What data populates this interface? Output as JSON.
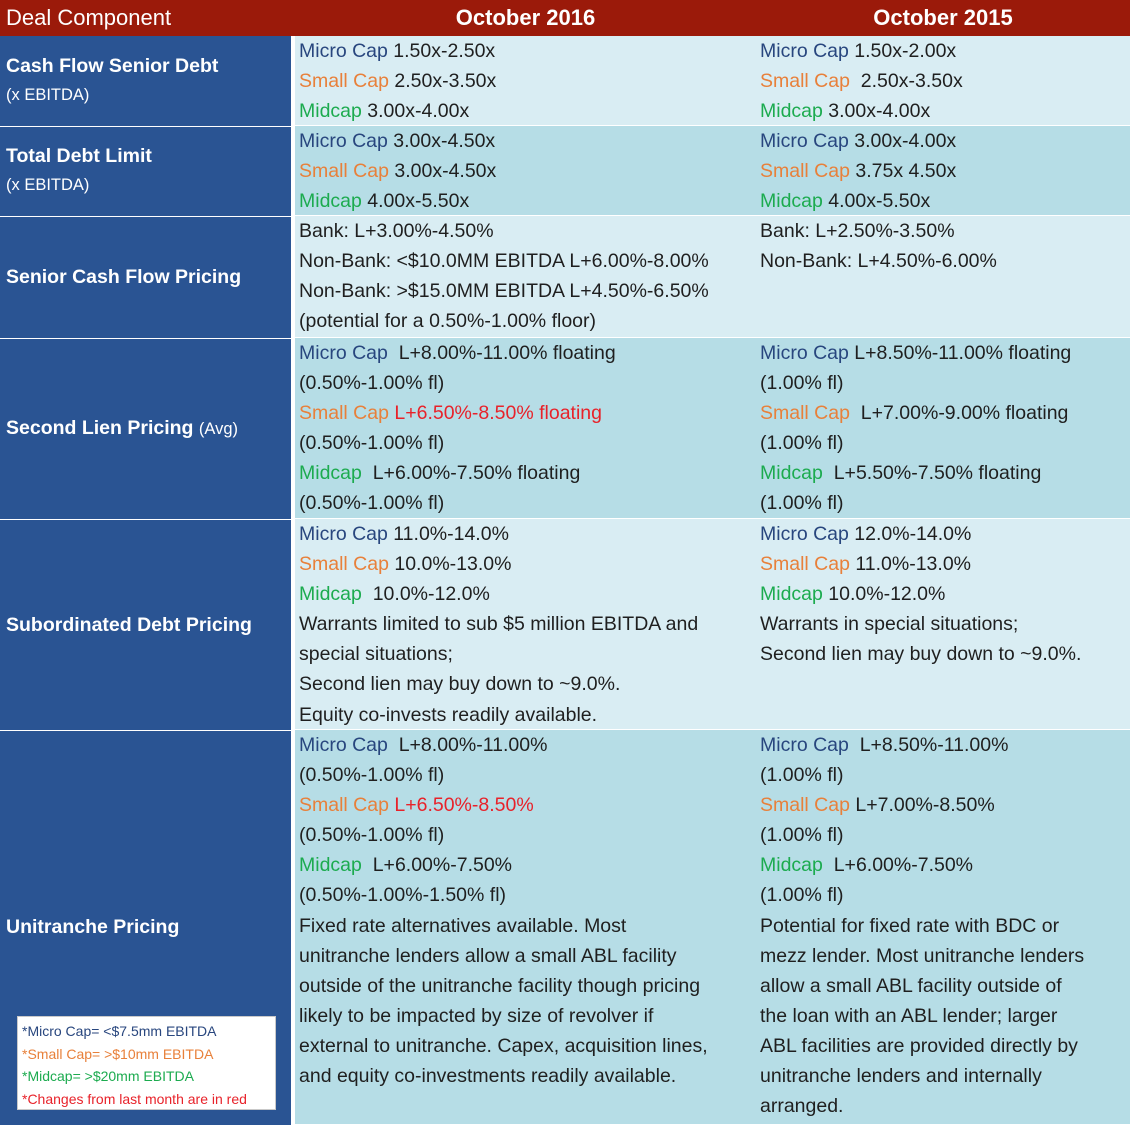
{
  "header": {
    "first": "Deal Component",
    "col1": "October 2016",
    "col2": "October 2015"
  },
  "rows": {
    "cash_flow": {
      "label": "Cash Flow Senior Debt",
      "sub": "(x EBITDA)",
      "c1": {
        "micro_label": "Micro Cap",
        "micro_val": " 1.50x-2.50x",
        "small_label": "Small Cap",
        "small_val": " 2.50x-3.50x",
        "mid_label": "Midcap",
        "mid_val": " 3.00x-4.00x"
      },
      "c2": {
        "micro_label": "Micro Cap",
        "micro_val": " 1.50x-2.00x",
        "small_label": "Small Cap",
        "small_val": "  2.50x-3.50x",
        "mid_label": "Midcap",
        "mid_val": " 3.00x-4.00x"
      }
    },
    "total_debt": {
      "label": "Total Debt Limit",
      "sub": "(x EBITDA)",
      "c1": {
        "micro_label": "Micro Cap",
        "micro_val": " 3.00x-4.50x",
        "small_label": "Small Cap",
        "small_val": " 3.00x-4.50x",
        "mid_label": "Midcap",
        "mid_val": " 4.00x-5.50x"
      },
      "c2": {
        "micro_label": "Micro Cap",
        "micro_val": " 3.00x-4.00x",
        "small_label": "Small Cap",
        "small_val": " 3.75x 4.50x",
        "mid_label": "Midcap",
        "mid_val": " 4.00x-5.50x"
      }
    },
    "senior_pricing": {
      "label": "Senior Cash Flow Pricing",
      "c1": [
        "Bank: L+3.00%-4.50%",
        "Non-Bank: <$10.0MM EBITDA L+6.00%-8.00%",
        "Non-Bank: >$15.0MM EBITDA L+4.50%-6.50%",
        "(potential for a 0.50%-1.00% floor)"
      ],
      "c2": [
        "Bank: L+2.50%-3.50%",
        "Non-Bank: L+4.50%-6.00%"
      ]
    },
    "second_lien": {
      "label": "Second Lien Pricing",
      "sub": "(Avg)",
      "c1": {
        "micro_label": "Micro Cap",
        "micro_val": "  L+8.00%-11.00% floating",
        "micro_fl": "(0.50%-1.00% fl)",
        "small_label": "Small Cap",
        "small_val": " L+6.50%-8.50% floating",
        "small_fl": "(0.50%-1.00% fl)",
        "mid_label": "Midcap",
        "mid_val": "  L+6.00%-7.50% floating",
        "mid_fl": "(0.50%-1.00% fl)"
      },
      "c2": {
        "micro_label": "Micro Cap",
        "micro_val": " L+8.50%-11.00% floating",
        "micro_fl": "(1.00% fl)",
        "small_label": "Small Cap",
        "small_val": "  L+7.00%-9.00% floating",
        "small_fl": "(1.00% fl)",
        "mid_label": "Midcap",
        "mid_val": "  L+5.50%-7.50% floating",
        "mid_fl": "(1.00% fl)"
      }
    },
    "subordinated": {
      "label": "Subordinated Debt Pricing",
      "c1": {
        "micro_label": "Micro Cap",
        "micro_val": " 11.0%-14.0%",
        "small_label": "Small Cap",
        "small_val": " 10.0%-13.0%",
        "mid_label": "Midcap",
        "mid_val": "  10.0%-12.0%",
        "notes": [
          "Warrants limited to sub $5 million EBITDA and",
          "special situations;",
          "Second lien may buy down to ~9.0%.",
          "Equity co-invests readily available."
        ]
      },
      "c2": {
        "micro_label": "Micro Cap",
        "micro_val": " 12.0%-14.0%",
        "small_label": "Small Cap",
        "small_val": " 11.0%-13.0%",
        "mid_label": "Midcap",
        "mid_val": " 10.0%-12.0%",
        "notes": [
          "Warrants in special situations;",
          "Second lien may buy down to ~9.0%."
        ]
      }
    },
    "unitranche": {
      "label": "Unitranche Pricing",
      "c1": {
        "micro_label": "Micro Cap",
        "micro_val": "  L+8.00%-11.00%",
        "micro_fl": "(0.50%-1.00% fl)",
        "small_label": "Small Cap",
        "small_val": " L+6.50%-8.50%",
        "small_fl": "(0.50%-1.00% fl)",
        "mid_label": "Midcap",
        "mid_val": "  L+6.00%-7.50%",
        "mid_fl": "(0.50%-1.00%-1.50% fl)",
        "notes": [
          "Fixed rate alternatives available. Most",
          "unitranche lenders allow a small ABL facility",
          "outside of the unitranche facility though pricing",
          "likely to be impacted by size of revolver if",
          "external to unitranche. Capex, acquisition lines,",
          "and equity co-investments readily available."
        ]
      },
      "c2": {
        "micro_label": "Micro Cap",
        "micro_val": "  L+8.50%-11.00%",
        "micro_fl": "(1.00% fl)",
        "small_label": "Small Cap",
        "small_val": " L+7.00%-8.50%",
        "small_fl": "(1.00% fl)",
        "mid_label": "Midcap",
        "mid_val": "  L+6.00%-7.50%",
        "mid_fl": "(1.00% fl)",
        "notes": [
          "Potential for fixed rate with BDC or",
          "mezz lender. Most unitranche lenders",
          "allow a small ABL facility outside of",
          "the loan with an ABL lender; larger",
          "ABL facilities are provided directly by",
          "unitranche lenders and internally",
          "arranged."
        ]
      }
    }
  },
  "legend": {
    "micro": "*Micro Cap= <$7.5mm EBITDA",
    "small": "*Small Cap= >$10mm EBITDA",
    "mid": "*Midcap= >$20mm EBITDA",
    "changes": "*Changes from last month are in red"
  },
  "colors": {
    "header_bg": "#9b1a0a",
    "left_bg": "#2a5493",
    "light_row": "#d9edf3",
    "mid_row": "#b6dde6",
    "micro": "#28467e",
    "small": "#e8803a",
    "midcap": "#1cab4f",
    "change": "#e8222a"
  }
}
